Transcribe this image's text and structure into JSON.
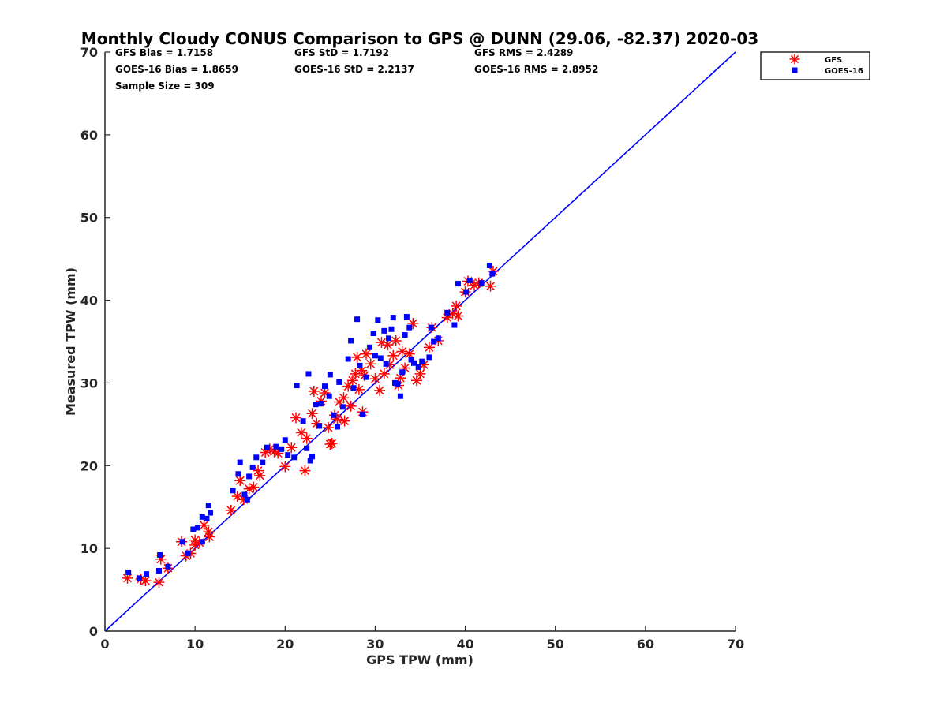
{
  "chart_data": {
    "type": "scatter",
    "title": "Monthly Cloudy CONUS Comparison to GPS @ DUNN (29.06, -82.37) 2020-03",
    "xlabel": "GPS TPW (mm)",
    "ylabel": "Measured TPW (mm)",
    "xlim": [
      0,
      70
    ],
    "ylim": [
      0,
      70
    ],
    "xticks": [
      "0",
      "10",
      "20",
      "30",
      "40",
      "50",
      "60",
      "70"
    ],
    "yticks": [
      "0",
      "10",
      "20",
      "30",
      "40",
      "50",
      "60",
      "70"
    ],
    "grid": false,
    "legend_position": "outside-top-right",
    "stats": [
      [
        "GFS Bias = 1.7158",
        "GFS StD = 1.7192",
        "GFS RMS = 2.4289"
      ],
      [
        "GOES-16 Bias = 1.8659",
        "GOES-16 StD = 2.2137",
        "GOES-16 RMS = 2.8952"
      ],
      [
        "Sample Size = 309"
      ]
    ],
    "reference_line": {
      "x": [
        0,
        70
      ],
      "y": [
        0,
        70
      ],
      "color": "#0000ff"
    },
    "series": [
      {
        "name": "GFS",
        "marker": "asterisk",
        "color": "#ff0000",
        "points": [
          [
            2.5,
            6.4
          ],
          [
            4,
            6.3
          ],
          [
            4.5,
            6.1
          ],
          [
            6,
            5.9
          ],
          [
            6.2,
            8.7
          ],
          [
            7,
            7.6
          ],
          [
            8.5,
            10.8
          ],
          [
            9,
            9.1
          ],
          [
            9.5,
            9.4
          ],
          [
            10,
            10.4
          ],
          [
            10,
            11
          ],
          [
            10.5,
            10.7
          ],
          [
            11,
            12.8
          ],
          [
            11.5,
            12
          ],
          [
            11.6,
            11.4
          ],
          [
            14,
            14.6
          ],
          [
            14.7,
            16.3
          ],
          [
            15,
            18.2
          ],
          [
            15.4,
            15.9
          ],
          [
            16,
            17.2
          ],
          [
            16.5,
            17.4
          ],
          [
            17,
            19.4
          ],
          [
            17.2,
            18.8
          ],
          [
            17.8,
            21.6
          ],
          [
            18.3,
            22
          ],
          [
            18.8,
            21.7
          ],
          [
            19.2,
            21.5
          ],
          [
            20,
            19.9
          ],
          [
            20.7,
            22.2
          ],
          [
            21.2,
            25.8
          ],
          [
            22.2,
            19.4
          ],
          [
            21.8,
            24
          ],
          [
            22.4,
            23.3
          ],
          [
            23,
            26.3
          ],
          [
            23.2,
            29
          ],
          [
            23.5,
            25.1
          ],
          [
            24,
            27.8
          ],
          [
            24.4,
            28.8
          ],
          [
            24.8,
            24.6
          ],
          [
            25,
            22.6
          ],
          [
            25.2,
            22.7
          ],
          [
            25.5,
            26.1
          ],
          [
            25.8,
            25.6
          ],
          [
            26,
            27.7
          ],
          [
            26.5,
            28.2
          ],
          [
            26.6,
            25.4
          ],
          [
            27,
            29.6
          ],
          [
            27.3,
            27.2
          ],
          [
            27.5,
            30.3
          ],
          [
            27.8,
            31.1
          ],
          [
            28,
            33.1
          ],
          [
            28.2,
            29.2
          ],
          [
            28.5,
            31.5
          ],
          [
            28.8,
            30.9
          ],
          [
            28.6,
            26.5
          ],
          [
            29,
            33.5
          ],
          [
            29.5,
            32.3
          ],
          [
            30,
            30.5
          ],
          [
            30.5,
            29.1
          ],
          [
            30.7,
            34.9
          ],
          [
            31,
            31.1
          ],
          [
            31.4,
            34.6
          ],
          [
            31.6,
            32.2
          ],
          [
            32,
            33.3
          ],
          [
            32.3,
            35.1
          ],
          [
            32.6,
            29.7
          ],
          [
            32.8,
            30.6
          ],
          [
            33,
            33.8
          ],
          [
            33.3,
            31.8
          ],
          [
            33.8,
            33.5
          ],
          [
            34.2,
            37.2
          ],
          [
            34.6,
            30.3
          ],
          [
            35,
            31.1
          ],
          [
            35.4,
            32.2
          ],
          [
            36,
            34.3
          ],
          [
            36.3,
            36.7
          ],
          [
            37,
            35.1
          ],
          [
            38,
            37.9
          ],
          [
            38.6,
            38.4
          ],
          [
            39,
            39.3
          ],
          [
            39.2,
            38.1
          ],
          [
            40,
            41
          ],
          [
            40.3,
            42.3
          ],
          [
            41,
            41.8
          ],
          [
            41.5,
            42.1
          ],
          [
            42.8,
            41.7
          ],
          [
            43.1,
            43.5
          ]
        ]
      },
      {
        "name": "GOES-16",
        "marker": "square",
        "color": "#0000ff",
        "points": [
          [
            2.6,
            7.1
          ],
          [
            3.8,
            6.4
          ],
          [
            4.6,
            6.9
          ],
          [
            6,
            7.3
          ],
          [
            6.1,
            9.2
          ],
          [
            7,
            7.8
          ],
          [
            8.6,
            10.8
          ],
          [
            9.2,
            9.4
          ],
          [
            9.8,
            12.3
          ],
          [
            10.3,
            12.5
          ],
          [
            10.8,
            13.8
          ],
          [
            11.3,
            13.6
          ],
          [
            11.5,
            15.2
          ],
          [
            11.7,
            14.3
          ],
          [
            10.8,
            10.8
          ],
          [
            14.2,
            17
          ],
          [
            14.8,
            19
          ],
          [
            15,
            20.4
          ],
          [
            15.5,
            16.5
          ],
          [
            15.8,
            15.9
          ],
          [
            16,
            18.7
          ],
          [
            16.4,
            19.8
          ],
          [
            16.8,
            21
          ],
          [
            17.5,
            20.4
          ],
          [
            18,
            22.2
          ],
          [
            19,
            22.3
          ],
          [
            19.6,
            22
          ],
          [
            20,
            23.1
          ],
          [
            20.3,
            21.3
          ],
          [
            21,
            21
          ],
          [
            21.3,
            29.7
          ],
          [
            22,
            25.4
          ],
          [
            22.4,
            22.1
          ],
          [
            22.6,
            31.1
          ],
          [
            22.8,
            20.6
          ],
          [
            23,
            21.1
          ],
          [
            23.4,
            27.4
          ],
          [
            23.8,
            24.8
          ],
          [
            24,
            27.5
          ],
          [
            24.4,
            29.6
          ],
          [
            24.9,
            28.4
          ],
          [
            25,
            31
          ],
          [
            25.4,
            26.1
          ],
          [
            25.8,
            24.7
          ],
          [
            26,
            30.1
          ],
          [
            26.4,
            27.1
          ],
          [
            27,
            32.9
          ],
          [
            27.3,
            35.1
          ],
          [
            27.6,
            29.4
          ],
          [
            28,
            37.7
          ],
          [
            28.3,
            32.1
          ],
          [
            28.6,
            26.2
          ],
          [
            29,
            30.7
          ],
          [
            29.4,
            34.3
          ],
          [
            29.8,
            36
          ],
          [
            30,
            33.3
          ],
          [
            30.3,
            37.6
          ],
          [
            30.6,
            33
          ],
          [
            31,
            36.3
          ],
          [
            31.2,
            32.3
          ],
          [
            31.5,
            35.4
          ],
          [
            31.8,
            36.5
          ],
          [
            32,
            37.9
          ],
          [
            32.2,
            30
          ],
          [
            32.5,
            29.9
          ],
          [
            32.8,
            28.4
          ],
          [
            33,
            31.3
          ],
          [
            33.3,
            35.8
          ],
          [
            33.5,
            38
          ],
          [
            33.8,
            36.7
          ],
          [
            34,
            32.8
          ],
          [
            34.3,
            32.4
          ],
          [
            34.8,
            31.9
          ],
          [
            35.2,
            32.6
          ],
          [
            36,
            33.1
          ],
          [
            36.2,
            36.7
          ],
          [
            36.5,
            35
          ],
          [
            37,
            35.4
          ],
          [
            38,
            38.5
          ],
          [
            38.8,
            37
          ],
          [
            39.2,
            42
          ],
          [
            40.1,
            41
          ],
          [
            40.5,
            42.4
          ],
          [
            41.8,
            42.1
          ],
          [
            42.7,
            44.2
          ],
          [
            43,
            43.2
          ]
        ]
      }
    ]
  }
}
